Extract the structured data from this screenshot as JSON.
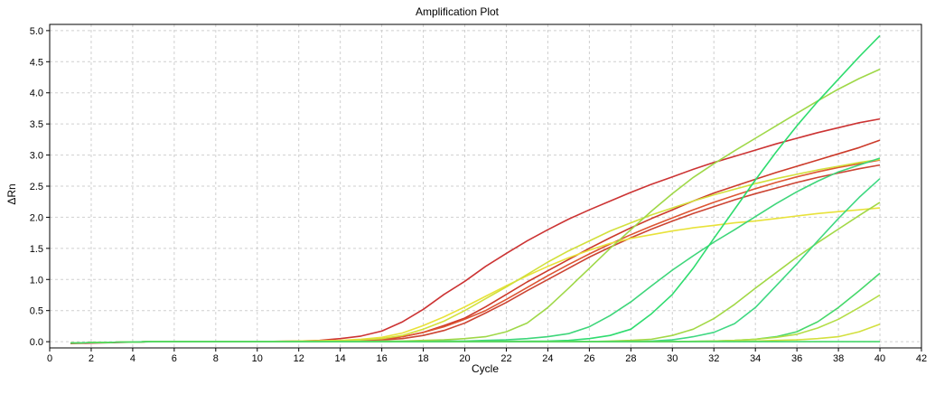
{
  "chart_data": {
    "type": "line",
    "title": "Amplification Plot",
    "xlabel": "Cycle",
    "ylabel": "ΔRn",
    "xlim": [
      0,
      42
    ],
    "ylim": [
      -0.1,
      5.1
    ],
    "x_ticks": [
      0,
      2,
      4,
      6,
      8,
      10,
      12,
      14,
      16,
      18,
      20,
      22,
      24,
      26,
      28,
      30,
      32,
      34,
      36,
      38,
      40,
      42
    ],
    "y_ticks": [
      0.0,
      0.5,
      1.0,
      1.5,
      2.0,
      2.5,
      3.0,
      3.5,
      4.0,
      4.5,
      5.0
    ],
    "y_tick_labels": [
      "0.0",
      "0.5",
      "1.0",
      "1.5",
      "2.0",
      "2.5",
      "3.0",
      "3.5",
      "4.0",
      "4.5",
      "5.0"
    ],
    "grid": true,
    "series": [
      {
        "color": "#cc3333",
        "x": [
          1,
          5,
          10,
          12,
          13,
          14,
          15,
          16,
          17,
          18,
          19,
          20,
          21,
          22,
          23,
          24,
          25,
          26,
          27,
          28,
          29,
          30,
          31,
          32,
          33,
          34,
          35,
          36,
          37,
          38,
          39,
          40
        ],
        "values": [
          -0.03,
          0,
          0,
          0.01,
          0.02,
          0.05,
          0.09,
          0.17,
          0.32,
          0.52,
          0.76,
          0.97,
          1.21,
          1.42,
          1.62,
          1.8,
          1.97,
          2.12,
          2.26,
          2.4,
          2.53,
          2.65,
          2.77,
          2.88,
          2.98,
          3.08,
          3.18,
          3.27,
          3.36,
          3.44,
          3.52,
          3.58
        ]
      },
      {
        "color": "#cc3a2a",
        "x": [
          1,
          5,
          10,
          14,
          15,
          16,
          17,
          18,
          19,
          20,
          21,
          22,
          23,
          24,
          25,
          26,
          27,
          28,
          29,
          30,
          31,
          32,
          33,
          34,
          35,
          36,
          37,
          38,
          39,
          40
        ],
        "values": [
          -0.02,
          0,
          0,
          0,
          0.02,
          0.04,
          0.08,
          0.15,
          0.26,
          0.38,
          0.56,
          0.76,
          0.96,
          1.14,
          1.32,
          1.5,
          1.67,
          1.83,
          1.98,
          2.12,
          2.26,
          2.39,
          2.5,
          2.61,
          2.72,
          2.82,
          2.92,
          3.02,
          3.12,
          3.24
        ]
      },
      {
        "color": "#cc4433",
        "x": [
          1,
          5,
          10,
          14,
          15,
          16,
          17,
          18,
          19,
          20,
          21,
          22,
          23,
          24,
          25,
          26,
          27,
          28,
          29,
          30,
          31,
          32,
          33,
          34,
          35,
          36,
          37,
          38,
          39,
          40
        ],
        "values": [
          -0.02,
          0,
          0,
          0,
          0.01,
          0.03,
          0.05,
          0.1,
          0.18,
          0.3,
          0.46,
          0.63,
          0.82,
          1.0,
          1.18,
          1.36,
          1.52,
          1.67,
          1.81,
          1.94,
          2.06,
          2.17,
          2.28,
          2.38,
          2.47,
          2.56,
          2.64,
          2.71,
          2.78,
          2.84
        ]
      },
      {
        "color": "#dd5533",
        "x": [
          1,
          5,
          10,
          14,
          15,
          16,
          17,
          18,
          19,
          20,
          21,
          22,
          23,
          24,
          25,
          26,
          27,
          28,
          29,
          30,
          31,
          32,
          33,
          34,
          35,
          36,
          37,
          38,
          39,
          40
        ],
        "values": [
          -0.02,
          0,
          0,
          0,
          0.02,
          0.04,
          0.08,
          0.15,
          0.24,
          0.36,
          0.5,
          0.68,
          0.87,
          1.06,
          1.24,
          1.41,
          1.57,
          1.72,
          1.86,
          1.99,
          2.12,
          2.24,
          2.35,
          2.46,
          2.56,
          2.65,
          2.73,
          2.8,
          2.86,
          2.92
        ]
      },
      {
        "color": "#e8e23a",
        "x": [
          1,
          5,
          10,
          14,
          15,
          16,
          17,
          18,
          19,
          20,
          21,
          22,
          23,
          24,
          25,
          26,
          27,
          28,
          29,
          30,
          31,
          32,
          33,
          34,
          35,
          36,
          37,
          38,
          39,
          40
        ],
        "values": [
          -0.02,
          0,
          0,
          0.02,
          0.04,
          0.07,
          0.14,
          0.26,
          0.4,
          0.56,
          0.73,
          0.9,
          1.06,
          1.21,
          1.35,
          1.47,
          1.58,
          1.66,
          1.72,
          1.78,
          1.83,
          1.87,
          1.91,
          1.94,
          1.98,
          2.02,
          2.06,
          2.09,
          2.12,
          2.15
        ]
      },
      {
        "color": "#d2e03c",
        "x": [
          1,
          5,
          10,
          14,
          15,
          16,
          17,
          18,
          19,
          20,
          21,
          22,
          23,
          24,
          25,
          26,
          27,
          28,
          29,
          30,
          31,
          32,
          33,
          34,
          35,
          36,
          37,
          38,
          39,
          40
        ],
        "values": [
          -0.02,
          0,
          0,
          0.01,
          0.03,
          0.05,
          0.1,
          0.2,
          0.33,
          0.5,
          0.69,
          0.88,
          1.08,
          1.28,
          1.46,
          1.62,
          1.78,
          1.91,
          2.04,
          2.15,
          2.26,
          2.36,
          2.45,
          2.54,
          2.62,
          2.69,
          2.76,
          2.82,
          2.88,
          2.93
        ]
      },
      {
        "color": "#9fd848",
        "x": [
          1,
          5,
          10,
          15,
          16,
          17,
          18,
          19,
          20,
          21,
          22,
          23,
          24,
          25,
          26,
          27,
          28,
          29,
          30,
          31,
          32,
          33,
          34,
          35,
          36,
          37,
          38,
          39,
          40
        ],
        "values": [
          -0.02,
          0,
          0,
          0,
          0.01,
          0.01,
          0.02,
          0.03,
          0.05,
          0.08,
          0.16,
          0.3,
          0.55,
          0.86,
          1.18,
          1.5,
          1.8,
          2.1,
          2.38,
          2.64,
          2.86,
          3.07,
          3.27,
          3.47,
          3.67,
          3.87,
          4.06,
          4.23,
          4.38
        ]
      },
      {
        "color": "#3ed67a",
        "x": [
          1,
          5,
          10,
          18,
          19,
          20,
          21,
          22,
          23,
          24,
          25,
          26,
          27,
          28,
          29,
          30,
          31,
          32,
          33,
          34,
          35,
          36,
          37,
          38,
          39,
          40
        ],
        "values": [
          -0.02,
          0,
          0,
          0,
          0.01,
          0.01,
          0.02,
          0.03,
          0.05,
          0.08,
          0.13,
          0.24,
          0.42,
          0.64,
          0.9,
          1.15,
          1.38,
          1.6,
          1.8,
          2.01,
          2.22,
          2.41,
          2.58,
          2.73,
          2.84,
          2.95
        ]
      },
      {
        "color": "#2fdc6f",
        "x": [
          1,
          5,
          10,
          20,
          24,
          25,
          26,
          27,
          28,
          29,
          30,
          31,
          32,
          33,
          34,
          35,
          36,
          37,
          38,
          39,
          40
        ],
        "values": [
          -0.02,
          0,
          0,
          0,
          0.01,
          0.02,
          0.05,
          0.1,
          0.2,
          0.45,
          0.76,
          1.18,
          1.66,
          2.13,
          2.6,
          3.05,
          3.47,
          3.86,
          4.22,
          4.58,
          4.92
        ]
      },
      {
        "color": "#a2d846",
        "x": [
          1,
          5,
          10,
          20,
          26,
          27,
          28,
          29,
          30,
          31,
          32,
          33,
          34,
          35,
          36,
          37,
          38,
          39,
          40
        ],
        "values": [
          -0.02,
          0,
          0,
          0,
          0,
          0.01,
          0.02,
          0.04,
          0.1,
          0.2,
          0.37,
          0.6,
          0.86,
          1.11,
          1.36,
          1.59,
          1.81,
          2.03,
          2.24
        ]
      },
      {
        "color": "#3fd882",
        "x": [
          1,
          5,
          10,
          20,
          28,
          29,
          30,
          31,
          32,
          33,
          34,
          35,
          36,
          37,
          38,
          39,
          40
        ],
        "values": [
          -0.02,
          0,
          0,
          0,
          0,
          0.01,
          0.03,
          0.08,
          0.15,
          0.29,
          0.55,
          0.9,
          1.25,
          1.62,
          1.98,
          2.32,
          2.62
        ]
      },
      {
        "color": "#46d86a",
        "x": [
          1,
          5,
          10,
          20,
          30,
          32,
          33,
          34,
          35,
          36,
          37,
          38,
          39,
          40
        ],
        "values": [
          -0.02,
          0,
          0,
          0,
          0,
          0.01,
          0.02,
          0.04,
          0.08,
          0.16,
          0.32,
          0.55,
          0.82,
          1.1
        ]
      },
      {
        "color": "#b3dd46",
        "x": [
          1,
          5,
          10,
          20,
          30,
          32,
          33,
          34,
          35,
          36,
          37,
          38,
          39,
          40
        ],
        "values": [
          -0.02,
          0,
          0,
          0,
          0,
          0.01,
          0.02,
          0.04,
          0.07,
          0.12,
          0.22,
          0.36,
          0.55,
          0.75
        ]
      },
      {
        "color": "#d3e03e",
        "x": [
          1,
          5,
          10,
          20,
          30,
          34,
          35,
          36,
          37,
          38,
          39,
          40
        ],
        "values": [
          -0.02,
          0,
          0,
          0,
          0,
          0.01,
          0.02,
          0.03,
          0.05,
          0.08,
          0.16,
          0.28
        ]
      },
      {
        "color": "#45d66a",
        "x": [
          1,
          5,
          10,
          20,
          30,
          40
        ],
        "values": [
          -0.02,
          0,
          0,
          0,
          0,
          0
        ]
      }
    ]
  }
}
